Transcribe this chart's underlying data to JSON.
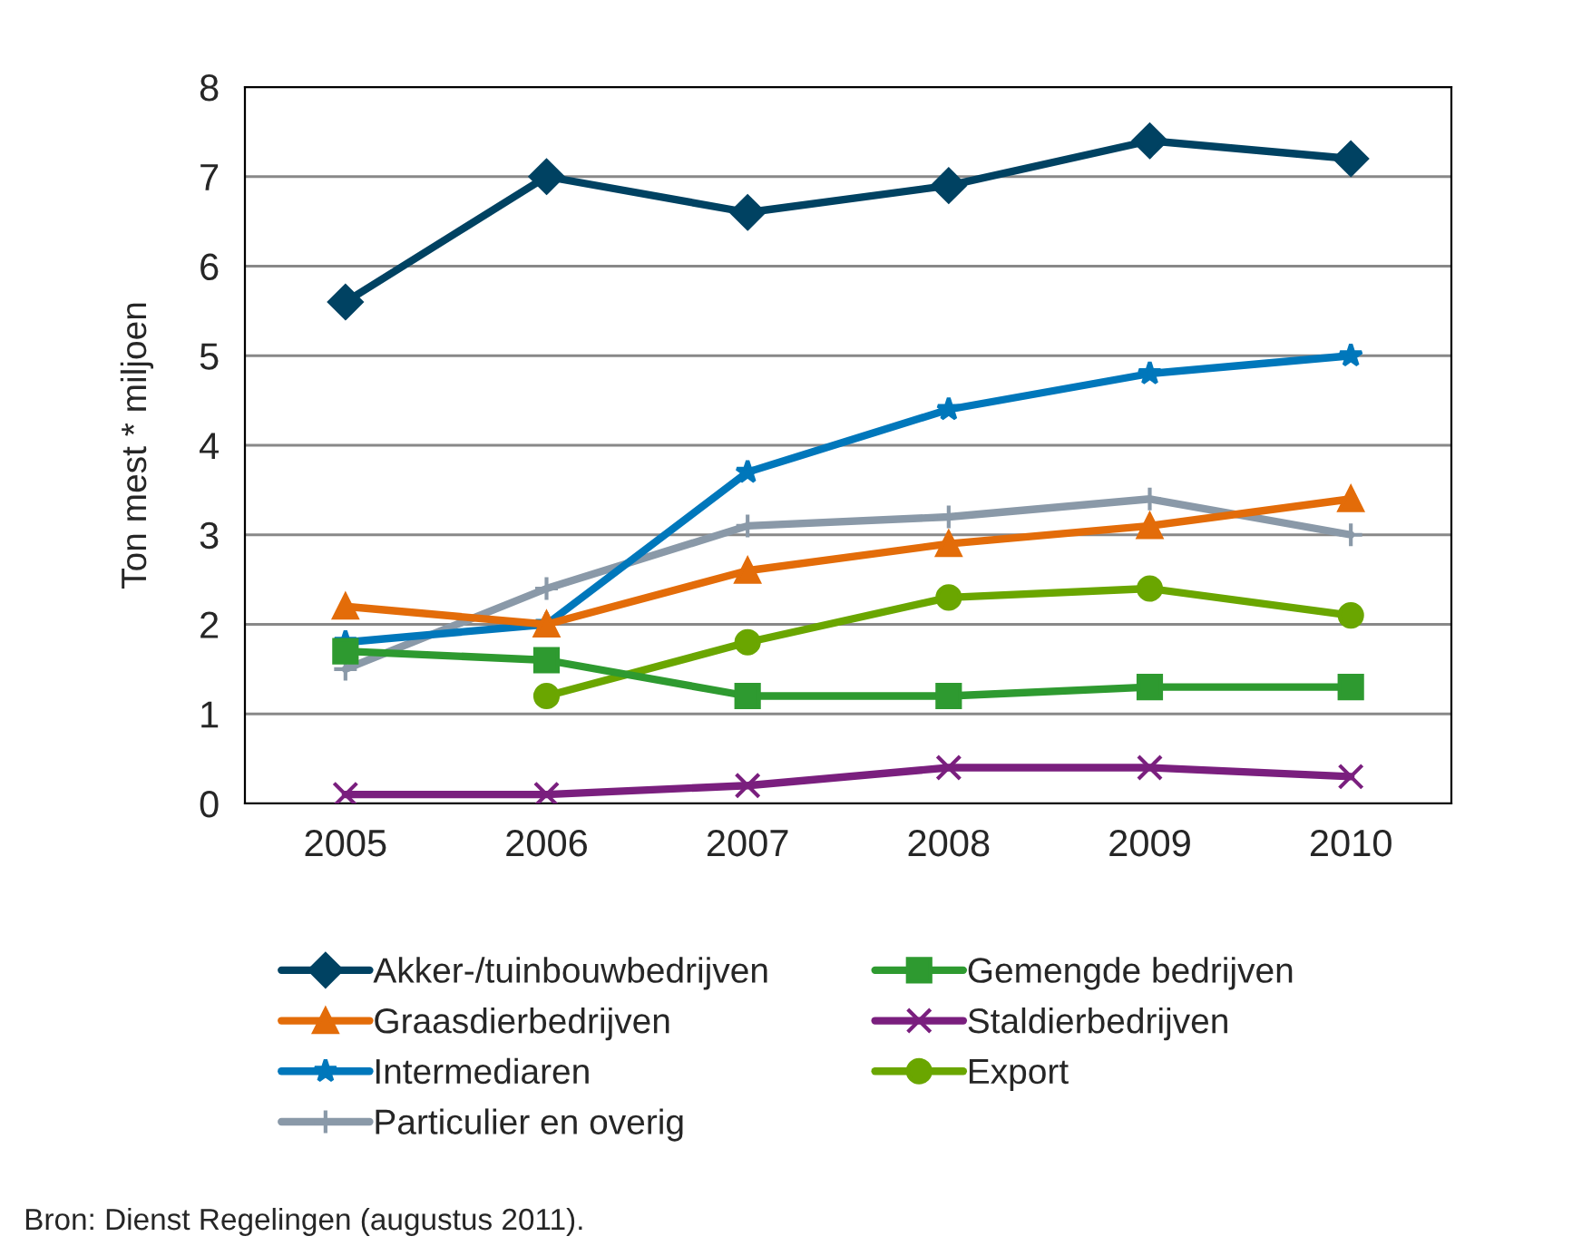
{
  "chart_data": {
    "type": "line",
    "ylabel": "Ton mest * miljoen",
    "categories": [
      "2005",
      "2006",
      "2007",
      "2008",
      "2009",
      "2010"
    ],
    "ylim": [
      0,
      8
    ],
    "yticks": [
      0,
      1,
      2,
      3,
      4,
      5,
      6,
      7,
      8
    ],
    "grid": "y",
    "legend": "bottom",
    "line_style": "solid",
    "series": [
      {
        "name": "Akker-/tuinbouwbedrijven",
        "color": "#004262",
        "marker": "diamond",
        "values": [
          5.6,
          7.0,
          6.6,
          6.9,
          7.4,
          7.2
        ]
      },
      {
        "name": "Gemengde bedrijven",
        "color": "#2e9a30",
        "marker": "square",
        "values": [
          1.7,
          1.6,
          1.2,
          1.2,
          1.3,
          1.3
        ]
      },
      {
        "name": "Graasdierbedrijven",
        "color": "#e36c09",
        "marker": "triangle",
        "values": [
          2.2,
          2.0,
          2.6,
          2.9,
          3.1,
          3.4
        ]
      },
      {
        "name": "Staldierbedrijven",
        "color": "#7a1f7e",
        "marker": "cross",
        "values": [
          0.1,
          0.1,
          0.2,
          0.4,
          0.4,
          0.3
        ]
      },
      {
        "name": "Intermediaren",
        "color": "#0077bb",
        "marker": "star",
        "values": [
          1.8,
          2.0,
          3.7,
          4.4,
          4.8,
          5.0
        ]
      },
      {
        "name": "Export",
        "color": "#6aa600",
        "marker": "circle",
        "values": [
          null,
          1.2,
          1.8,
          2.3,
          2.4,
          2.1
        ]
      },
      {
        "name": "Particulier en overig",
        "color": "#8a99a8",
        "marker": "plus",
        "values": [
          1.5,
          2.4,
          3.1,
          3.2,
          3.4,
          3.0
        ]
      }
    ],
    "annotations": [
      "Bron: Dienst Regelingen (augustus 2011)."
    ]
  }
}
